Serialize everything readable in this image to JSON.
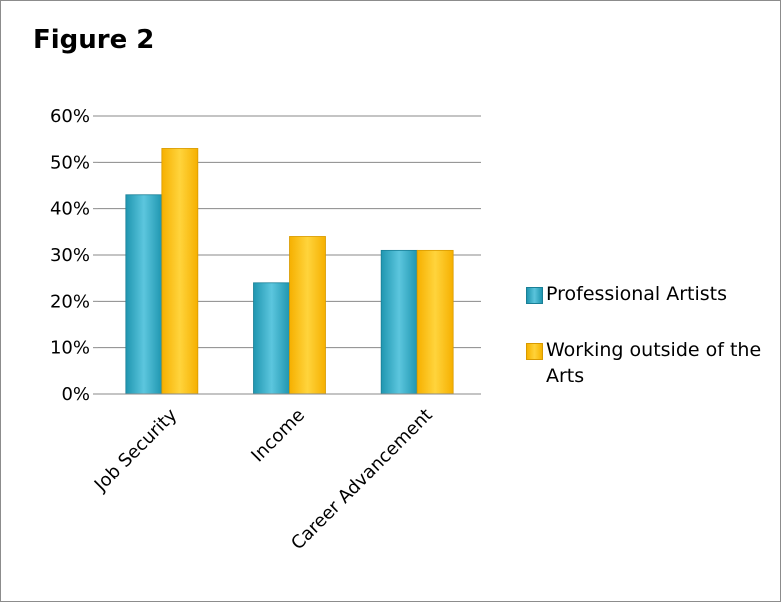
{
  "figure": {
    "title": "Figure 2"
  },
  "chart_data": {
    "type": "bar",
    "categories": [
      "Job Security",
      "Income",
      "Career Advancement"
    ],
    "series": [
      {
        "name": "Professional Artists",
        "values": [
          43,
          24,
          31
        ]
      },
      {
        "name": "Working outside of the Arts",
        "values": [
          53,
          34,
          31
        ]
      }
    ],
    "ylim": [
      0,
      60
    ],
    "yticks": [
      "0%",
      "10%",
      "20%",
      "30%",
      "40%",
      "50%",
      "60%"
    ],
    "grid": true,
    "legend_position": "right",
    "colors": {
      "Professional Artists": "#3ab0cc",
      "Working outside of the Arts": "#fdc010"
    }
  }
}
